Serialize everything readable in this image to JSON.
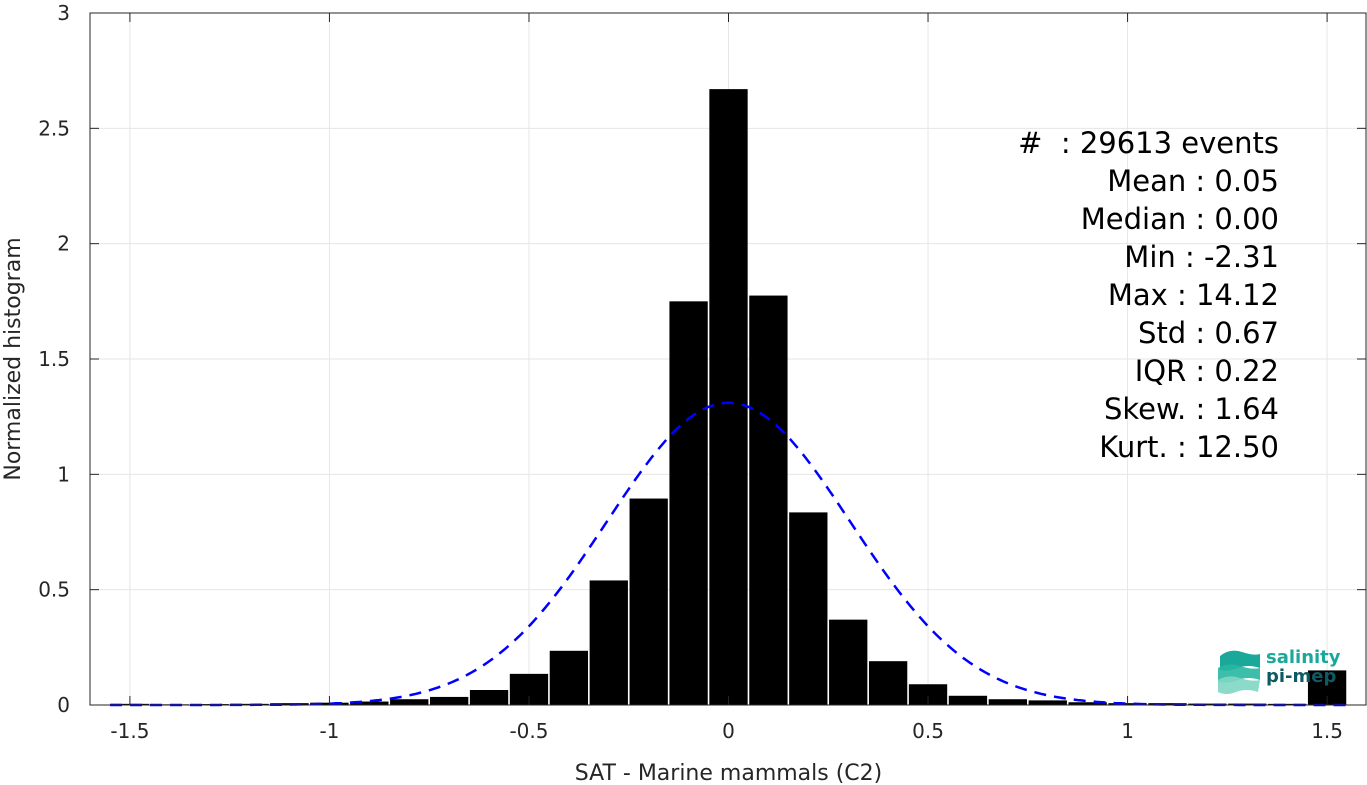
{
  "chart_data": {
    "type": "bar",
    "xlabel": "SAT - Marine mammals (C2)",
    "ylabel": "Normalized histogram",
    "xlim": [
      -1.6,
      1.6
    ],
    "ylim": [
      0,
      3
    ],
    "xticks": [
      "-1.5",
      "-1",
      "-0.5",
      "0",
      "0.5",
      "1",
      "1.5"
    ],
    "yticks": [
      "0",
      "0.5",
      "1",
      "1.5",
      "2",
      "2.5",
      "3"
    ],
    "grid": true,
    "bar_color": "#000000",
    "fit_color": "#0000ff",
    "bins": [
      {
        "x": -1.5,
        "y": 0.005
      },
      {
        "x": -1.4,
        "y": 0.003
      },
      {
        "x": -1.3,
        "y": 0.004
      },
      {
        "x": -1.2,
        "y": 0.005
      },
      {
        "x": -1.1,
        "y": 0.008
      },
      {
        "x": -1.0,
        "y": 0.01
      },
      {
        "x": -0.9,
        "y": 0.015
      },
      {
        "x": -0.8,
        "y": 0.025
      },
      {
        "x": -0.7,
        "y": 0.035
      },
      {
        "x": -0.6,
        "y": 0.065
      },
      {
        "x": -0.5,
        "y": 0.135
      },
      {
        "x": -0.4,
        "y": 0.235
      },
      {
        "x": -0.3,
        "y": 0.54
      },
      {
        "x": -0.2,
        "y": 0.895
      },
      {
        "x": -0.1,
        "y": 1.75
      },
      {
        "x": 0.0,
        "y": 2.67
      },
      {
        "x": 0.1,
        "y": 1.775
      },
      {
        "x": 0.2,
        "y": 0.835
      },
      {
        "x": 0.3,
        "y": 0.37
      },
      {
        "x": 0.4,
        "y": 0.19
      },
      {
        "x": 0.5,
        "y": 0.09
      },
      {
        "x": 0.6,
        "y": 0.04
      },
      {
        "x": 0.7,
        "y": 0.025
      },
      {
        "x": 0.8,
        "y": 0.02
      },
      {
        "x": 0.9,
        "y": 0.012
      },
      {
        "x": 1.0,
        "y": 0.008
      },
      {
        "x": 1.1,
        "y": 0.008
      },
      {
        "x": 1.2,
        "y": 0.006
      },
      {
        "x": 1.3,
        "y": 0.006
      },
      {
        "x": 1.4,
        "y": 0.005
      },
      {
        "x": 1.5,
        "y": 0.15
      }
    ],
    "fit": {
      "type": "gaussian",
      "mean": 0.0,
      "peak": 1.31,
      "sigma": 0.305
    }
  },
  "stats": [
    "#  : 29613 events",
    "Mean : 0.05",
    "Median : 0.00",
    "Min : -2.31",
    "Max : 14.12",
    "Std : 0.67",
    "IQR : 0.22",
    "Skew. : 1.64",
    "Kurt. : 12.50"
  ],
  "logo": {
    "line1": "salinity",
    "line2": "pi-mep"
  }
}
